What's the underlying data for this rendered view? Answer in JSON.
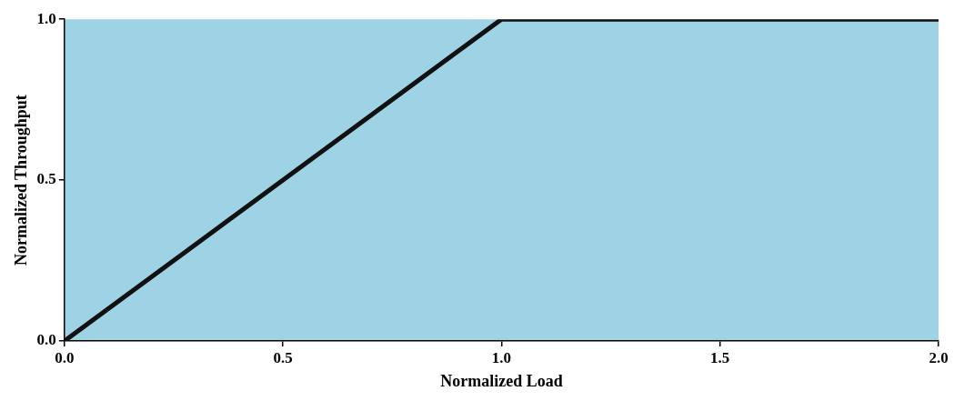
{
  "chart_data": {
    "type": "line",
    "xlabel": "Normalized Load",
    "ylabel": "Normalized Throughput",
    "x": [
      0,
      1,
      2
    ],
    "series": [
      {
        "color": "#111111",
        "values": [
          0,
          1,
          1
        ]
      }
    ],
    "xlim": [
      0,
      2
    ],
    "ylim": [
      0,
      1
    ],
    "xticks": [
      {
        "value": 0,
        "label": "0.0"
      },
      {
        "value": 0.5,
        "label": "0.5"
      },
      {
        "value": 1,
        "label": "1.0"
      },
      {
        "value": 1.5,
        "label": "1.5"
      },
      {
        "value": 2,
        "label": "2.0"
      }
    ],
    "yticks": [
      {
        "value": 0,
        "label": "0.0"
      },
      {
        "value": 0.5,
        "label": "0.5"
      },
      {
        "value": 1,
        "label": "1.0"
      }
    ],
    "grid": false,
    "legend": false,
    "marker": "none",
    "line_style": "solid"
  }
}
